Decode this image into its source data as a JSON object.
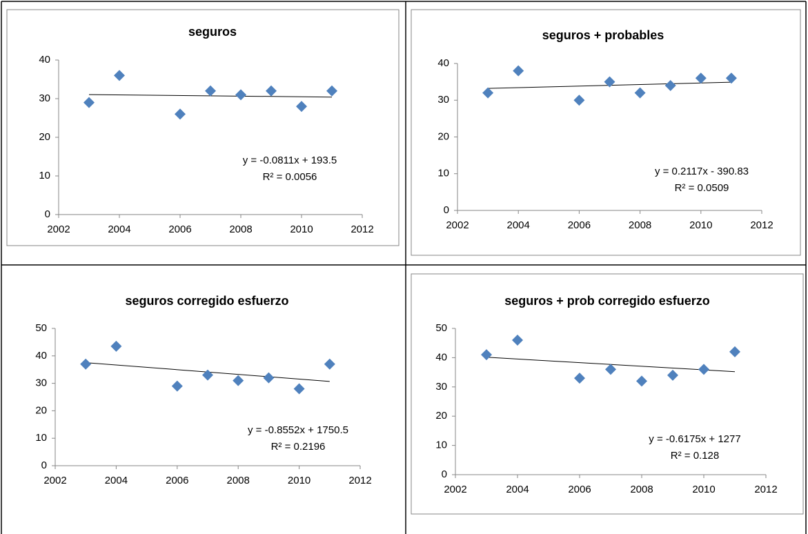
{
  "chart_data": [
    {
      "type": "scatter",
      "title": "seguros",
      "color": "#4f81bd",
      "x": [
        2003,
        2004,
        2006,
        2007,
        2008,
        2009,
        2010,
        2011
      ],
      "values": [
        29,
        36,
        26,
        32,
        31,
        32,
        28,
        32
      ],
      "xlim": [
        2002,
        2012
      ],
      "xticks": [
        2002,
        2004,
        2006,
        2008,
        2010,
        2012
      ],
      "ylim": [
        0,
        40
      ],
      "yticks": [
        0,
        10,
        20,
        30,
        40
      ],
      "trendline": {
        "slope": -0.0811,
        "intercept": 193.5,
        "labels": [
          "y = -0.0811x + 193.5",
          "R² = 0.0056"
        ]
      }
    },
    {
      "type": "scatter",
      "title": "seguros + probables",
      "color": "#4f81bd",
      "x": [
        2003,
        2004,
        2006,
        2007,
        2008,
        2009,
        2010,
        2011
      ],
      "values": [
        32,
        38,
        30,
        35,
        32,
        34,
        36,
        36
      ],
      "xlim": [
        2002,
        2012
      ],
      "xticks": [
        2002,
        2004,
        2006,
        2008,
        2010,
        2012
      ],
      "ylim": [
        0,
        40
      ],
      "yticks": [
        0,
        10,
        20,
        30,
        40
      ],
      "trendline": {
        "slope": 0.2117,
        "intercept": -390.83,
        "labels": [
          "y = 0.2117x - 390.83",
          "R² = 0.0509"
        ]
      }
    },
    {
      "type": "scatter",
      "title": "seguros corregido esfuerzo",
      "color": "#4f81bd",
      "x": [
        2003,
        2004,
        2006,
        2007,
        2008,
        2009,
        2010,
        2011
      ],
      "values": [
        37,
        43.5,
        29,
        33,
        31,
        32,
        28,
        37
      ],
      "xlim": [
        2002,
        2012
      ],
      "xticks": [
        2002,
        2004,
        2006,
        2008,
        2010,
        2012
      ],
      "ylim": [
        0,
        50
      ],
      "yticks": [
        0,
        10,
        20,
        30,
        40,
        50
      ],
      "trendline": {
        "slope": -0.8552,
        "intercept": 1750.5,
        "labels": [
          "y = -0.8552x + 1750.5",
          "R² = 0.2196"
        ]
      }
    },
    {
      "type": "scatter",
      "title": "seguros + prob corregido esfuerzo",
      "color": "#4f81bd",
      "x": [
        2003,
        2004,
        2006,
        2007,
        2008,
        2009,
        2010,
        2011
      ],
      "values": [
        41,
        46,
        33,
        36,
        32,
        34,
        36,
        42
      ],
      "xlim": [
        2002,
        2012
      ],
      "xticks": [
        2002,
        2004,
        2006,
        2008,
        2010,
        2012
      ],
      "ylim": [
        0,
        50
      ],
      "yticks": [
        0,
        10,
        20,
        30,
        40,
        50
      ],
      "trendline": {
        "slope": -0.6175,
        "intercept": 1277,
        "labels": [
          "y = -0.6175x + 1277",
          "R² = 0.128"
        ]
      }
    }
  ]
}
